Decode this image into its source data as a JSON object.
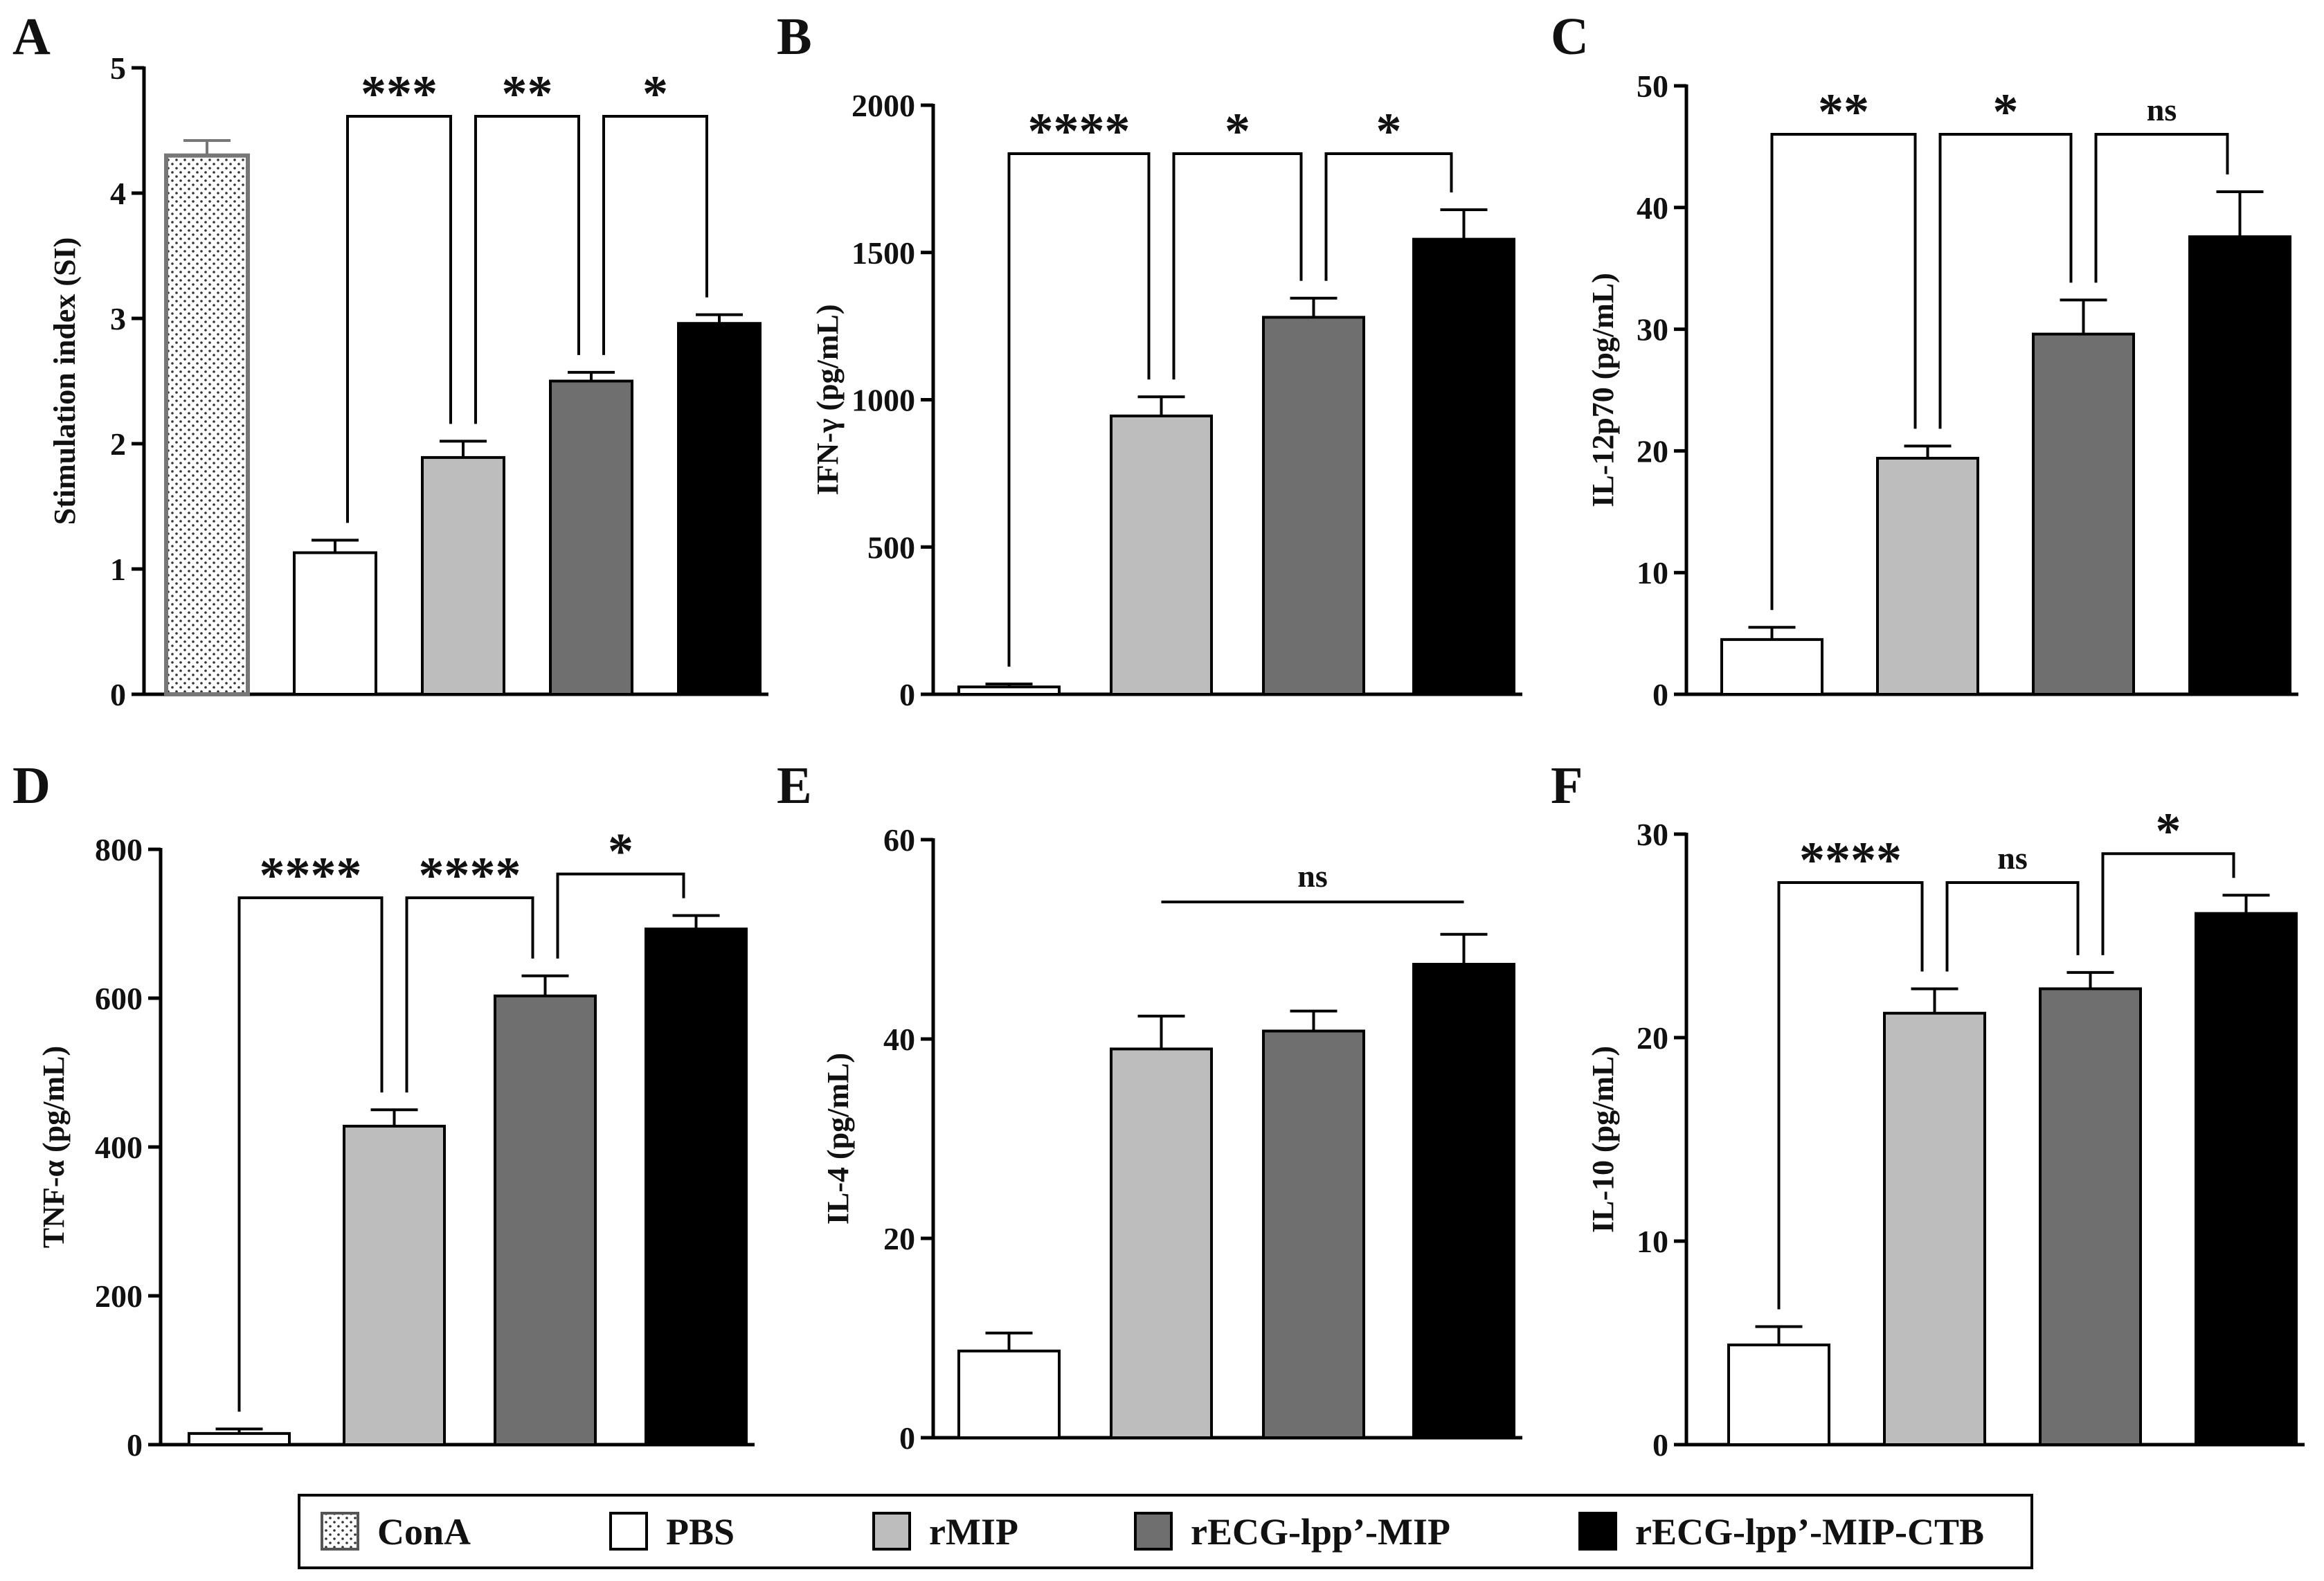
{
  "legend": [
    {
      "key": "conA",
      "label": "ConA",
      "fill": "dots"
    },
    {
      "key": "pbs",
      "label": "PBS",
      "fill": "#ffffff"
    },
    {
      "key": "rmip",
      "label": "rMIP",
      "fill": "#bdbdbd"
    },
    {
      "key": "recg",
      "label": "rECG-lpp’-MIP",
      "fill": "#6f6f6f"
    },
    {
      "key": "recgctb",
      "label": "rECG-lpp’-MIP-CTB",
      "fill": "#000000"
    }
  ],
  "chart_data": [
    {
      "panel": "A",
      "type": "bar",
      "ylabel": "Stimulation index (SI)",
      "ylim": [
        0,
        5
      ],
      "ticks": [
        0,
        1,
        2,
        3,
        4,
        5
      ],
      "groups": [
        "ConA",
        "PBS",
        "rMIP",
        "rECG-lpp’-MIP",
        "rECG-lpp’-MIP-CTB"
      ],
      "values": [
        4.3,
        1.13,
        1.89,
        2.5,
        2.96
      ],
      "errors": [
        0.12,
        0.1,
        0.13,
        0.07,
        0.07
      ],
      "significance": [
        {
          "from": 1,
          "to": 2,
          "label": "***"
        },
        {
          "from": 2,
          "to": 3,
          "label": "**"
        },
        {
          "from": 3,
          "to": 4,
          "label": "*"
        }
      ]
    },
    {
      "panel": "B",
      "type": "bar",
      "ylabel": "IFN-γ (pg/mL)",
      "ylim": [
        0,
        2000
      ],
      "ticks": [
        0,
        500,
        1000,
        1500,
        2000
      ],
      "groups": [
        "PBS",
        "rMIP",
        "rECG-lpp’-MIP",
        "rECG-lpp’-MIP-CTB"
      ],
      "values": [
        25,
        945,
        1280,
        1545
      ],
      "errors": [
        10,
        65,
        65,
        100
      ],
      "significance": [
        {
          "from": 0,
          "to": 1,
          "label": "****"
        },
        {
          "from": 1,
          "to": 2,
          "label": "*"
        },
        {
          "from": 2,
          "to": 3,
          "label": "*"
        }
      ]
    },
    {
      "panel": "C",
      "type": "bar",
      "ylabel": "IL-12p70 (pg/mL)",
      "ylim": [
        0,
        50
      ],
      "ticks": [
        0,
        10,
        20,
        30,
        40,
        50
      ],
      "groups": [
        "PBS",
        "rMIP",
        "rECG-lpp’-MIP",
        "rECG-lpp’-MIP-CTB"
      ],
      "values": [
        4.5,
        19.4,
        29.6,
        37.6
      ],
      "errors": [
        1.0,
        1.0,
        2.8,
        3.7
      ],
      "significance": [
        {
          "from": 0,
          "to": 1,
          "label": "**"
        },
        {
          "from": 1,
          "to": 2,
          "label": "*"
        },
        {
          "from": 2,
          "to": 3,
          "label": "ns"
        }
      ]
    },
    {
      "panel": "D",
      "type": "bar",
      "ylabel": "TNF-α (pg/mL)",
      "ylim": [
        0,
        800
      ],
      "ticks": [
        0,
        200,
        400,
        600,
        800
      ],
      "groups": [
        "PBS",
        "rMIP",
        "rECG-lpp’-MIP",
        "rECG-lpp’-MIP-CTB"
      ],
      "values": [
        15,
        428,
        603,
        693
      ],
      "errors": [
        6,
        22,
        27,
        18
      ],
      "significance": [
        {
          "from": 0,
          "to": 1,
          "label": "****"
        },
        {
          "from": 1,
          "to": 2,
          "label": "****"
        },
        {
          "from": 2,
          "to": 3,
          "label": "*"
        }
      ]
    },
    {
      "panel": "E",
      "type": "bar",
      "ylabel": "IL-4 (pg/mL)",
      "ylim": [
        0,
        60
      ],
      "ticks": [
        0,
        20,
        40,
        60
      ],
      "groups": [
        "PBS",
        "rMIP",
        "rECG-lpp’-MIP",
        "rECG-lpp’-MIP-CTB"
      ],
      "values": [
        8.7,
        39.0,
        40.8,
        47.5
      ],
      "errors": [
        1.8,
        3.3,
        2.0,
        3.0
      ],
      "significance": [
        {
          "from": 1,
          "to": 3,
          "label": "ns",
          "style": "line"
        }
      ]
    },
    {
      "panel": "F",
      "type": "bar",
      "ylabel": "IL-10 (pg/mL)",
      "ylim": [
        0,
        30
      ],
      "ticks": [
        0,
        10,
        20,
        30
      ],
      "groups": [
        "PBS",
        "rMIP",
        "rECG-lpp’-MIP",
        "rECG-lpp’-MIP-CTB"
      ],
      "values": [
        4.9,
        21.2,
        22.4,
        26.1
      ],
      "errors": [
        0.9,
        1.2,
        0.8,
        0.9
      ],
      "significance": [
        {
          "from": 0,
          "to": 1,
          "label": "****"
        },
        {
          "from": 1,
          "to": 2,
          "label": "ns"
        },
        {
          "from": 2,
          "to": 3,
          "label": "*"
        }
      ]
    }
  ]
}
